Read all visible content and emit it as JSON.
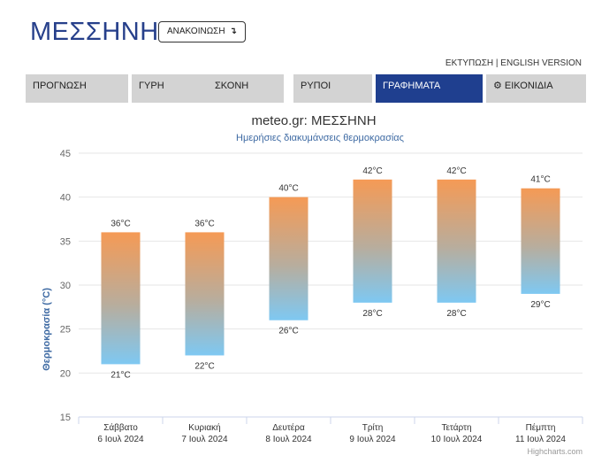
{
  "header": {
    "title": "ΜΕΣΣΗΝΗ",
    "announce_label": "ΑΝΑΚΟΙΝΩΣΗ",
    "announce_icon": "↴"
  },
  "toplinks": {
    "print": "ΕΚΤΥΠΩΣΗ",
    "separator": "|",
    "english": "ENGLISH VERSION"
  },
  "tabs": [
    {
      "label": "ΠΡΟΓΝΩΣΗ",
      "active": false
    },
    {
      "label": "ΓΥΡΗ",
      "active": false
    },
    {
      "label": "ΣΚΟΝΗ",
      "active": false
    },
    {
      "label": "ΡΥΠΟΙ",
      "active": false
    },
    {
      "label": "ΓΡΑΦΗΜΑΤΑ",
      "active": true
    },
    {
      "label": "ΕΙΚΟΝΙΔΙΑ",
      "active": false,
      "icon": "gear-icon"
    }
  ],
  "colors": {
    "title": "#27408b",
    "active_tab": "#1f3f8f",
    "tab": "#d3d3d3",
    "bar_top": "#f59a55",
    "bar_bottom": "#7ec8f2",
    "subtitle": "#3e6aa3"
  },
  "chart_data": {
    "type": "columnrange",
    "title": "meteo.gr: ΜΕΣΣΗΝΗ",
    "subtitle": "Ημερήσιες διακυμάνσεις θερμοκρασίας",
    "ylabel": "Θερμοκρασία (°C)",
    "ylim": [
      15,
      45
    ],
    "yticks": [
      15,
      20,
      25,
      30,
      35,
      40,
      45
    ],
    "categories": [
      [
        "Σάββατο",
        "6 Ιουλ 2024"
      ],
      [
        "Κυριακή",
        "7 Ιουλ 2024"
      ],
      [
        "Δευτέρα",
        "8 Ιουλ 2024"
      ],
      [
        "Τρίτη",
        "9 Ιουλ 2024"
      ],
      [
        "Τετάρτη",
        "10 Ιουλ 2024"
      ],
      [
        "Πέμπτη",
        "11 Ιουλ 2024"
      ]
    ],
    "min": [
      21,
      22,
      26,
      28,
      28,
      29
    ],
    "max": [
      36,
      36,
      40,
      42,
      42,
      41
    ],
    "unit": "°C",
    "grid": true
  },
  "credit": "Highcharts.com"
}
